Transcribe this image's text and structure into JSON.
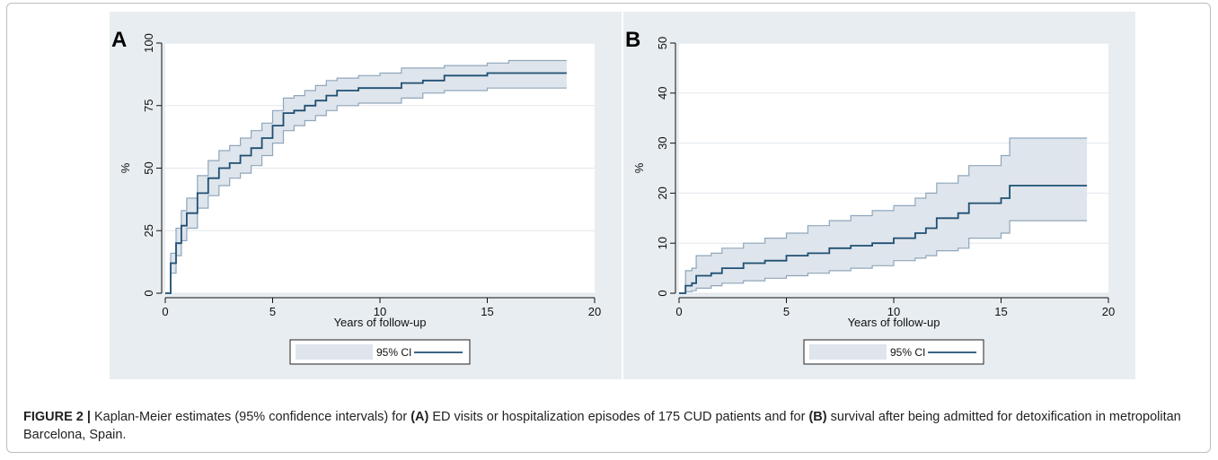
{
  "figure": {
    "caption_label": "FIGURE 2 |",
    "caption_parts": [
      {
        "text": " Kaplan-Meier estimates (95% confidence intervals) for ",
        "bold": false
      },
      {
        "text": "(A)",
        "bold": true
      },
      {
        "text": " ED visits or hospitalization episodes of 175 CUD patients and for ",
        "bold": false
      },
      {
        "text": "(B)",
        "bold": true
      },
      {
        "text": " survival after being admitted for detoxification in metropolitan Barcelona, Spain.",
        "bold": false
      }
    ]
  },
  "colors": {
    "panel_bg": "#e8edf1",
    "plot_bg": "#ffffff",
    "grid": "#e2e8ee",
    "ci_fill": "#dfe5ec",
    "ci_line": "#8fa6bb",
    "estimate_line": "#1f4f73",
    "axis": "#111111"
  },
  "chart_data": [
    {
      "type": "line",
      "panel_label": "A",
      "xlabel": "Years of follow-up",
      "ylabel": "%",
      "xlim": [
        0,
        20
      ],
      "ylim": [
        0,
        100
      ],
      "xticks": [
        0,
        5,
        10,
        15,
        20
      ],
      "yticks": [
        0,
        25,
        50,
        75,
        100
      ],
      "grid": true,
      "legend": {
        "position": "bottom",
        "entries": [
          "95% CI",
          ""
        ]
      },
      "series": [
        {
          "role": "estimate",
          "x": [
            0,
            0.25,
            0.5,
            0.75,
            1,
            1.5,
            2,
            2.5,
            3,
            3.5,
            4,
            4.5,
            5,
            5.5,
            6,
            6.5,
            7,
            7.5,
            8,
            9,
            10,
            11,
            12,
            13,
            14,
            15,
            16,
            17,
            18.7
          ],
          "y": [
            0,
            12,
            20,
            27,
            32,
            40,
            46,
            50,
            52,
            55,
            58,
            62,
            67,
            72,
            73,
            75,
            77,
            79,
            81,
            82,
            82,
            84,
            85,
            87,
            87,
            88,
            88,
            88,
            88
          ]
        },
        {
          "role": "ci_upper",
          "x": [
            0,
            0.25,
            0.5,
            0.75,
            1,
            1.5,
            2,
            2.5,
            3,
            3.5,
            4,
            4.5,
            5,
            5.5,
            6,
            6.5,
            7,
            7.5,
            8,
            9,
            10,
            11,
            12,
            13,
            14,
            15,
            16,
            17,
            18.7
          ],
          "y": [
            0,
            16,
            26,
            33,
            38,
            47,
            53,
            57,
            59,
            62,
            65,
            68,
            73,
            78,
            79,
            81,
            83,
            85,
            86,
            87,
            88,
            90,
            90,
            91,
            91,
            92,
            93,
            93,
            93
          ]
        },
        {
          "role": "ci_lower",
          "x": [
            0,
            0.25,
            0.5,
            0.75,
            1,
            1.5,
            2,
            2.5,
            3,
            3.5,
            4,
            4.5,
            5,
            5.5,
            6,
            6.5,
            7,
            7.5,
            8,
            9,
            10,
            11,
            12,
            13,
            14,
            15,
            16,
            17,
            18.7
          ],
          "y": [
            0,
            8,
            15,
            21,
            26,
            34,
            39,
            43,
            46,
            48,
            51,
            55,
            60,
            65,
            67,
            69,
            71,
            73,
            75,
            76,
            76,
            78,
            80,
            81,
            81,
            82,
            82,
            82,
            82
          ]
        }
      ]
    },
    {
      "type": "line",
      "panel_label": "B",
      "xlabel": "Years of follow-up",
      "ylabel": "%",
      "xlim": [
        0,
        20
      ],
      "ylim": [
        0,
        50
      ],
      "xticks": [
        0,
        5,
        10,
        15,
        20
      ],
      "yticks": [
        0,
        10,
        20,
        30,
        40,
        50
      ],
      "grid": true,
      "legend": {
        "position": "bottom",
        "entries": [
          "95% CI",
          ""
        ]
      },
      "series": [
        {
          "role": "estimate",
          "x": [
            0,
            0.3,
            0.6,
            0.8,
            1.5,
            2,
            3,
            4,
            5,
            6,
            7,
            8,
            9,
            10,
            11,
            11.5,
            12,
            13,
            13.5,
            14,
            15,
            15.4,
            16,
            17,
            18,
            19
          ],
          "y": [
            0,
            1.5,
            2,
            3.5,
            4,
            5,
            6,
            6.5,
            7.5,
            8,
            9,
            9.5,
            10,
            11,
            12,
            13,
            15,
            16,
            18,
            18,
            19,
            21.5,
            21.5,
            21.5,
            21.5,
            21.5
          ]
        },
        {
          "role": "ci_upper",
          "x": [
            0,
            0.3,
            0.6,
            0.8,
            1.5,
            2,
            3,
            4,
            5,
            6,
            7,
            8,
            9,
            10,
            11,
            11.5,
            12,
            13,
            13.5,
            14,
            15,
            15.4,
            16,
            17,
            18,
            19
          ],
          "y": [
            0,
            4.5,
            5,
            7.5,
            8,
            9,
            10,
            11,
            12,
            13.5,
            14.5,
            15.5,
            16.5,
            17.5,
            19,
            20,
            22,
            23.5,
            25.5,
            25.5,
            27.5,
            31,
            31,
            31,
            31,
            31
          ]
        },
        {
          "role": "ci_lower",
          "x": [
            0,
            0.3,
            0.6,
            0.8,
            1.5,
            2,
            3,
            4,
            5,
            6,
            7,
            8,
            9,
            10,
            11,
            11.5,
            12,
            13,
            13.5,
            14,
            15,
            15.4,
            16,
            17,
            18,
            19
          ],
          "y": [
            0,
            0.3,
            0.5,
            1,
            1.5,
            2,
            2.5,
            3,
            3.5,
            4,
            4.5,
            5,
            5.5,
            6.5,
            7,
            7.5,
            8.5,
            9,
            11,
            11,
            12,
            14.5,
            14.5,
            14.5,
            14.5,
            14.5
          ]
        }
      ]
    }
  ]
}
